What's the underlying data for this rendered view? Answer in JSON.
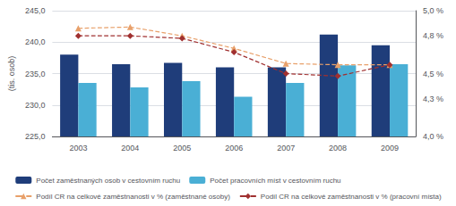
{
  "chart_data": {
    "type": "bar",
    "categories": [
      "2003",
      "2004",
      "2005",
      "2006",
      "2007",
      "2008",
      "2009"
    ],
    "ylabel": "(tis. osob)",
    "ylim": [
      225.0,
      245.0
    ],
    "yticks": [
      {
        "value": 225.0,
        "label": "225,0"
      },
      {
        "value": 230.0,
        "label": "230,0"
      },
      {
        "value": 235.0,
        "label": "235,0"
      },
      {
        "value": 240.0,
        "label": "240,0"
      },
      {
        "value": 245.0,
        "label": "245,0"
      }
    ],
    "y2lim": [
      4.0,
      5.0
    ],
    "y2ticks": [
      {
        "value": 4.0,
        "label": "4,0 %"
      },
      {
        "value": 4.3,
        "label": "4,3 %"
      },
      {
        "value": 4.5,
        "label": "4,5 %"
      },
      {
        "value": 4.8,
        "label": "4,8 %"
      },
      {
        "value": 5.0,
        "label": "5,0 %"
      }
    ],
    "grid": true,
    "legend": "bottom",
    "series": [
      {
        "name": "Počet zaměstnaných osob v cestovním ruchu",
        "type": "bar",
        "color": "#1F3D7A",
        "values": [
          238.0,
          236.5,
          236.7,
          236.0,
          236.0,
          241.2,
          239.5
        ]
      },
      {
        "name": "Počet pracovních míst v cestovním ruchu",
        "type": "bar",
        "color": "#4AAFD5",
        "values": [
          233.5,
          232.8,
          233.8,
          231.3,
          233.5,
          236.3,
          236.5
        ]
      },
      {
        "name": "Podíl CR na celkové zaměstnanosti v % (zaměstnané osoby)",
        "type": "line",
        "axis": "y2",
        "color": "#E8A06A",
        "marker": "triangle",
        "line_style": "dashed",
        "values": [
          4.86,
          4.87,
          4.8,
          4.7,
          4.58,
          4.57,
          4.57
        ]
      },
      {
        "name": "Podíl CR na celkové zaměstnanosti v % (pracovní místa)",
        "type": "line",
        "axis": "y2",
        "color": "#A03030",
        "marker": "diamond",
        "line_style": "dashed",
        "values": [
          4.8,
          4.8,
          4.78,
          4.67,
          4.5,
          4.48,
          4.57
        ]
      }
    ]
  }
}
